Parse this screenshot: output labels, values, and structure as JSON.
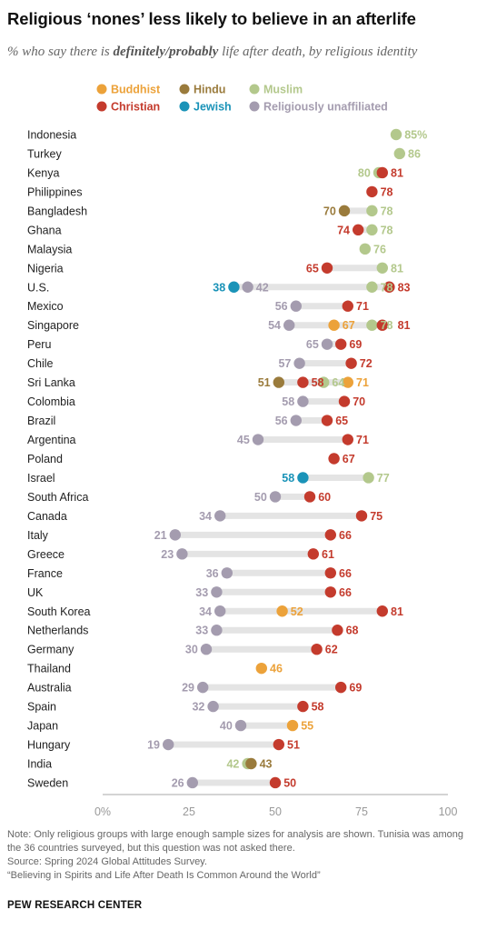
{
  "title": "Religious ‘nones’ less likely to believe in an afterlife",
  "subtitle": {
    "prefix": "% who say there is ",
    "emphasis": "definitely/probably",
    "suffix": " life after death, by religious identity"
  },
  "colors": {
    "Buddhist": "#eca23a",
    "Hindu": "#9a7b3c",
    "Muslim": "#b3c88c",
    "Christian": "#c43b2d",
    "Jewish": "#1a93b8",
    "Religiously unaffiliated": "#a49caf",
    "track": "#e4e4e4",
    "axis": "#aaaaaa"
  },
  "legend": [
    {
      "name": "Buddhist",
      "color": "#eca23a"
    },
    {
      "name": "Hindu",
      "color": "#9a7b3c"
    },
    {
      "name": "Muslim",
      "color": "#b3c88c"
    },
    {
      "name": "Christian",
      "color": "#c43b2d"
    },
    {
      "name": "Jewish",
      "color": "#1a93b8"
    },
    {
      "name": "Religiously unaffiliated",
      "color": "#a49caf"
    }
  ],
  "chart_data": {
    "type": "scatter",
    "style": "dot plot",
    "unit": "%",
    "xlim": [
      0,
      100
    ],
    "xticks": [
      0,
      25,
      50,
      75,
      100
    ],
    "xtick_labels": [
      "0%",
      "25",
      "50",
      "75",
      "100"
    ],
    "grid": false,
    "legend_position": "top",
    "rows": [
      {
        "country": "Indonesia",
        "points": [
          {
            "group": "Muslim",
            "value": 85,
            "label": "85%"
          }
        ]
      },
      {
        "country": "Turkey",
        "points": [
          {
            "group": "Muslim",
            "value": 86,
            "label": "86"
          }
        ]
      },
      {
        "country": "Kenya",
        "points": [
          {
            "group": "Muslim",
            "value": 80,
            "label": "80"
          },
          {
            "group": "Christian",
            "value": 81,
            "label": "81"
          }
        ]
      },
      {
        "country": "Philippines",
        "points": [
          {
            "group": "Christian",
            "value": 78,
            "label": "78"
          }
        ]
      },
      {
        "country": "Bangladesh",
        "points": [
          {
            "group": "Hindu",
            "value": 70,
            "label": "70"
          },
          {
            "group": "Muslim",
            "value": 78,
            "label": "78"
          }
        ]
      },
      {
        "country": "Ghana",
        "points": [
          {
            "group": "Christian",
            "value": 74,
            "label": "74"
          },
          {
            "group": "Muslim",
            "value": 78,
            "label": "78"
          }
        ]
      },
      {
        "country": "Malaysia",
        "points": [
          {
            "group": "Muslim",
            "value": 76,
            "label": "76"
          }
        ]
      },
      {
        "country": "Nigeria",
        "points": [
          {
            "group": "Christian",
            "value": 65,
            "label": "65"
          },
          {
            "group": "Muslim",
            "value": 81,
            "label": "81"
          }
        ]
      },
      {
        "country": "U.S.",
        "points": [
          {
            "group": "Jewish",
            "value": 38,
            "label": "38"
          },
          {
            "group": "Religiously unaffiliated",
            "value": 42,
            "label": "42"
          },
          {
            "group": "Muslim",
            "value": 78,
            "label": "78"
          },
          {
            "group": "Christian",
            "value": 83,
            "label": "83"
          }
        ]
      },
      {
        "country": "Mexico",
        "points": [
          {
            "group": "Religiously unaffiliated",
            "value": 56,
            "label": "56"
          },
          {
            "group": "Christian",
            "value": 71,
            "label": "71"
          }
        ]
      },
      {
        "country": "Singapore",
        "points": [
          {
            "group": "Religiously unaffiliated",
            "value": 54,
            "label": "54"
          },
          {
            "group": "Buddhist",
            "value": 67,
            "label": "67"
          },
          {
            "group": "Muslim",
            "value": 78,
            "label": "78"
          },
          {
            "group": "Christian",
            "value": 81,
            "label": "81"
          }
        ]
      },
      {
        "country": "Peru",
        "points": [
          {
            "group": "Religiously unaffiliated",
            "value": 65,
            "label": "65"
          },
          {
            "group": "Christian",
            "value": 69,
            "label": "69"
          }
        ]
      },
      {
        "country": "Chile",
        "points": [
          {
            "group": "Religiously unaffiliated",
            "value": 57,
            "label": "57"
          },
          {
            "group": "Christian",
            "value": 72,
            "label": "72"
          }
        ]
      },
      {
        "country": "Sri Lanka",
        "points": [
          {
            "group": "Hindu",
            "value": 51,
            "label": "51"
          },
          {
            "group": "Christian",
            "value": 58,
            "label": "58"
          },
          {
            "group": "Muslim",
            "value": 64,
            "label": "64"
          },
          {
            "group": "Buddhist",
            "value": 71,
            "label": "71"
          }
        ]
      },
      {
        "country": "Colombia",
        "points": [
          {
            "group": "Religiously unaffiliated",
            "value": 58,
            "label": "58"
          },
          {
            "group": "Christian",
            "value": 70,
            "label": "70"
          }
        ]
      },
      {
        "country": "Brazil",
        "points": [
          {
            "group": "Religiously unaffiliated",
            "value": 56,
            "label": "56"
          },
          {
            "group": "Christian",
            "value": 65,
            "label": "65"
          }
        ]
      },
      {
        "country": "Argentina",
        "points": [
          {
            "group": "Religiously unaffiliated",
            "value": 45,
            "label": "45"
          },
          {
            "group": "Christian",
            "value": 71,
            "label": "71"
          }
        ]
      },
      {
        "country": "Poland",
        "points": [
          {
            "group": "Christian",
            "value": 67,
            "label": "67"
          }
        ]
      },
      {
        "country": "Israel",
        "points": [
          {
            "group": "Jewish",
            "value": 58,
            "label": "58"
          },
          {
            "group": "Muslim",
            "value": 77,
            "label": "77"
          }
        ]
      },
      {
        "country": "South Africa",
        "points": [
          {
            "group": "Religiously unaffiliated",
            "value": 50,
            "label": "50"
          },
          {
            "group": "Christian",
            "value": 60,
            "label": "60"
          }
        ]
      },
      {
        "country": "Canada",
        "points": [
          {
            "group": "Religiously unaffiliated",
            "value": 34,
            "label": "34"
          },
          {
            "group": "Christian",
            "value": 75,
            "label": "75"
          }
        ]
      },
      {
        "country": "Italy",
        "points": [
          {
            "group": "Religiously unaffiliated",
            "value": 21,
            "label": "21"
          },
          {
            "group": "Christian",
            "value": 66,
            "label": "66"
          }
        ]
      },
      {
        "country": "Greece",
        "points": [
          {
            "group": "Religiously unaffiliated",
            "value": 23,
            "label": "23"
          },
          {
            "group": "Christian",
            "value": 61,
            "label": "61"
          }
        ]
      },
      {
        "country": "France",
        "points": [
          {
            "group": "Religiously unaffiliated",
            "value": 36,
            "label": "36"
          },
          {
            "group": "Christian",
            "value": 66,
            "label": "66"
          }
        ]
      },
      {
        "country": "UK",
        "points": [
          {
            "group": "Religiously unaffiliated",
            "value": 33,
            "label": "33"
          },
          {
            "group": "Christian",
            "value": 66,
            "label": "66"
          }
        ]
      },
      {
        "country": "South Korea",
        "points": [
          {
            "group": "Religiously unaffiliated",
            "value": 34,
            "label": "34"
          },
          {
            "group": "Buddhist",
            "value": 52,
            "label": "52"
          },
          {
            "group": "Christian",
            "value": 81,
            "label": "81"
          }
        ]
      },
      {
        "country": "Netherlands",
        "points": [
          {
            "group": "Religiously unaffiliated",
            "value": 33,
            "label": "33"
          },
          {
            "group": "Christian",
            "value": 68,
            "label": "68"
          }
        ]
      },
      {
        "country": "Germany",
        "points": [
          {
            "group": "Religiously unaffiliated",
            "value": 30,
            "label": "30"
          },
          {
            "group": "Christian",
            "value": 62,
            "label": "62"
          }
        ]
      },
      {
        "country": "Thailand",
        "points": [
          {
            "group": "Buddhist",
            "value": 46,
            "label": "46"
          }
        ]
      },
      {
        "country": "Australia",
        "points": [
          {
            "group": "Religiously unaffiliated",
            "value": 29,
            "label": "29"
          },
          {
            "group": "Christian",
            "value": 69,
            "label": "69"
          }
        ]
      },
      {
        "country": "Spain",
        "points": [
          {
            "group": "Religiously unaffiliated",
            "value": 32,
            "label": "32"
          },
          {
            "group": "Christian",
            "value": 58,
            "label": "58"
          }
        ]
      },
      {
        "country": "Japan",
        "points": [
          {
            "group": "Religiously unaffiliated",
            "value": 40,
            "label": "40"
          },
          {
            "group": "Buddhist",
            "value": 55,
            "label": "55"
          }
        ]
      },
      {
        "country": "Hungary",
        "points": [
          {
            "group": "Religiously unaffiliated",
            "value": 19,
            "label": "19"
          },
          {
            "group": "Christian",
            "value": 51,
            "label": "51"
          }
        ]
      },
      {
        "country": "India",
        "points": [
          {
            "group": "Muslim",
            "value": 42,
            "label": "42"
          },
          {
            "group": "Hindu",
            "value": 43,
            "label": "43"
          }
        ]
      },
      {
        "country": "Sweden",
        "points": [
          {
            "group": "Religiously unaffiliated",
            "value": 26,
            "label": "26"
          },
          {
            "group": "Christian",
            "value": 50,
            "label": "50"
          }
        ]
      }
    ]
  },
  "footer": {
    "note": "Note: Only religious groups with large enough sample sizes for analysis are shown. Tunisia was among the 36 countries surveyed, but this question was not asked there.",
    "source": "Source: Spring 2024 Global Attitudes Survey.",
    "report": "“Believing in Spirits and Life After Death Is Common Around the World”",
    "brand": "PEW RESEARCH CENTER"
  }
}
